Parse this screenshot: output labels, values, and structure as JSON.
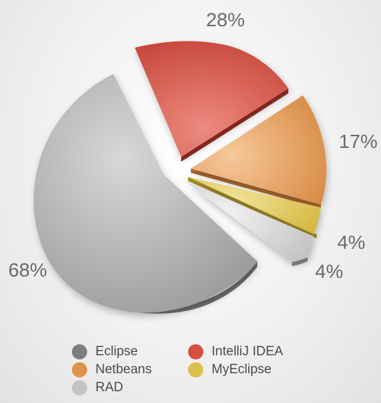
{
  "chart_data": {
    "type": "pie",
    "categories": [
      "Eclipse",
      "IntelliJ IDEA",
      "Netbeans",
      "MyEclipse",
      "RAD"
    ],
    "values": [
      68,
      28,
      17,
      4,
      4
    ],
    "labels": [
      "68%",
      "28%",
      "17%",
      "4%",
      "4%"
    ],
    "colors": [
      "#8a8a8a",
      "#d9534a",
      "#e89a4e",
      "#e4c84e",
      "#c4c4c4"
    ],
    "legend_position": "bottom"
  }
}
